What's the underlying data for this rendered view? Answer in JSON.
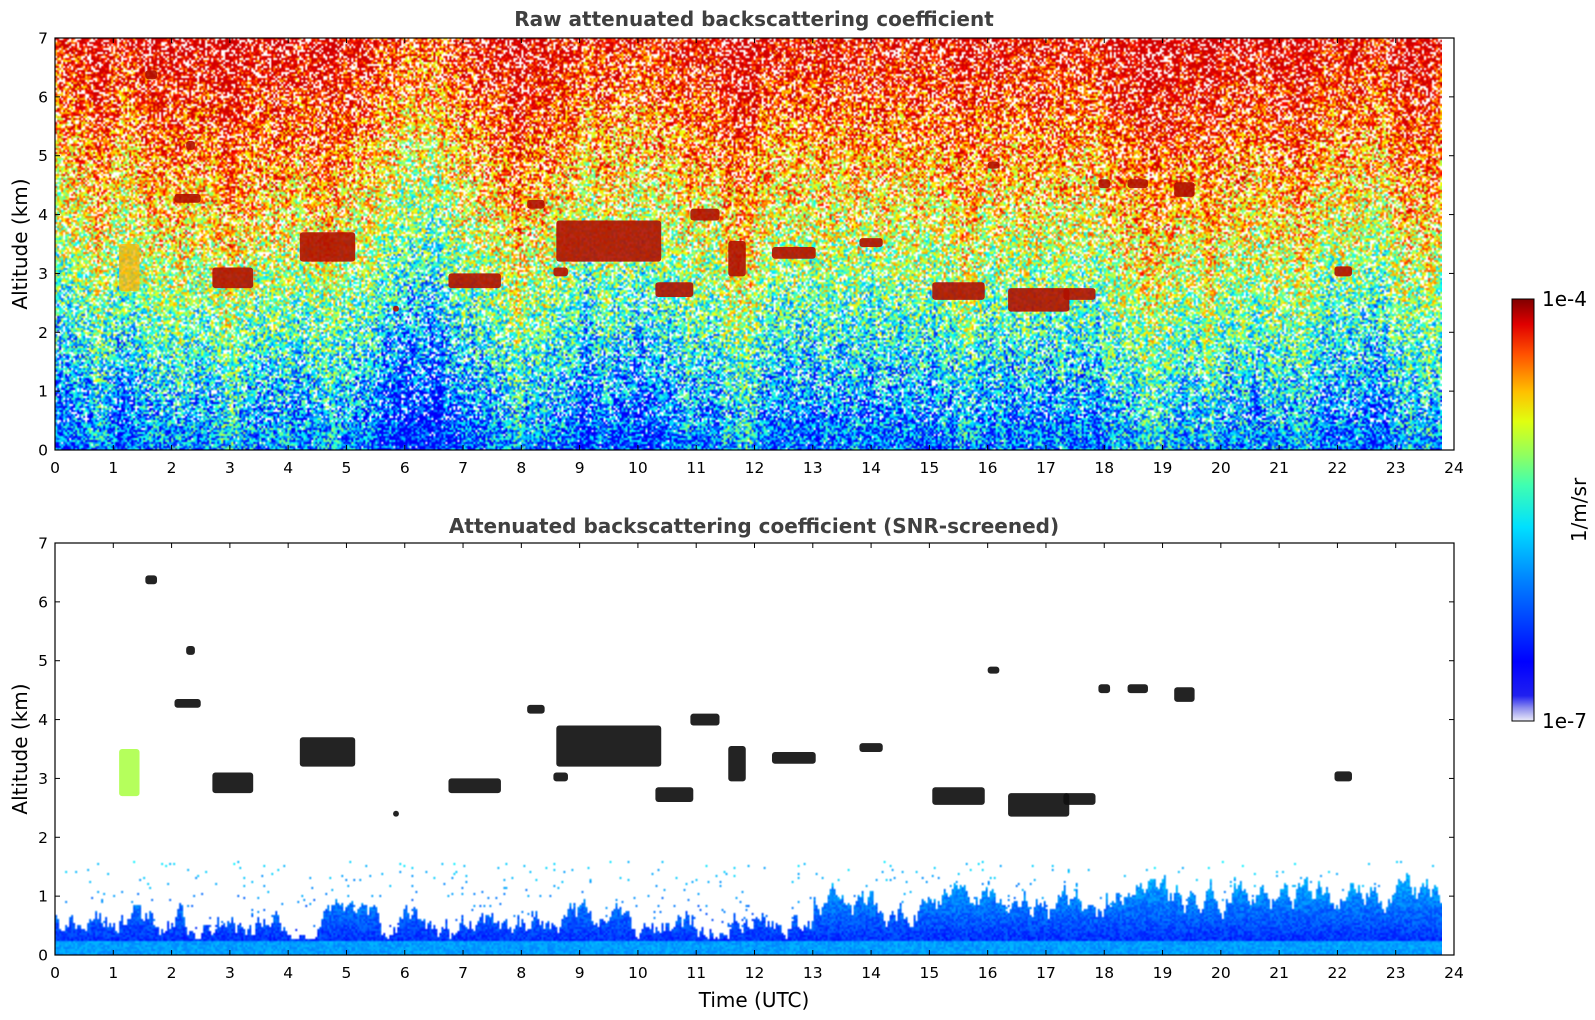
{
  "chart_data": [
    {
      "type": "heatmap",
      "title": "Raw attenuated backscattering coefficient",
      "xlabel": "",
      "ylabel": "Altitude (km)",
      "xlim": [
        0,
        24
      ],
      "ylim": [
        0,
        7
      ],
      "x_ticks": [
        "0",
        "1",
        "2",
        "3",
        "4",
        "5",
        "6",
        "7",
        "8",
        "9",
        "10",
        "11",
        "12",
        "13",
        "14",
        "15",
        "16",
        "17",
        "18",
        "19",
        "20",
        "21",
        "22",
        "23",
        "24"
      ],
      "y_ticks": [
        "0",
        "1",
        "2",
        "3",
        "4",
        "5",
        "6",
        "7"
      ],
      "data_end_time": 23.8,
      "value_scale": "log",
      "cloud_features": [
        {
          "t0": 1.55,
          "t1": 1.75,
          "z0": 6.3,
          "z1": 6.45
        },
        {
          "t0": 2.25,
          "t1": 2.4,
          "z0": 5.1,
          "z1": 5.25
        },
        {
          "t0": 2.05,
          "t1": 2.5,
          "z0": 4.2,
          "z1": 4.35
        },
        {
          "t0": 2.7,
          "t1": 3.4,
          "z0": 2.75,
          "z1": 3.1
        },
        {
          "t0": 4.2,
          "t1": 5.15,
          "z0": 3.2,
          "z1": 3.7
        },
        {
          "t0": 5.8,
          "t1": 5.9,
          "z0": 2.35,
          "z1": 2.45
        },
        {
          "t0": 6.75,
          "t1": 7.65,
          "z0": 2.75,
          "z1": 3.0
        },
        {
          "t0": 8.1,
          "t1": 8.4,
          "z0": 4.1,
          "z1": 4.25
        },
        {
          "t0": 8.6,
          "t1": 10.4,
          "z0": 3.2,
          "z1": 3.9
        },
        {
          "t0": 8.55,
          "t1": 8.8,
          "z0": 2.95,
          "z1": 3.1
        },
        {
          "t0": 10.3,
          "t1": 10.95,
          "z0": 2.6,
          "z1": 2.85
        },
        {
          "t0": 10.9,
          "t1": 11.4,
          "z0": 3.9,
          "z1": 4.1
        },
        {
          "t0": 11.55,
          "t1": 11.85,
          "z0": 2.95,
          "z1": 3.55
        },
        {
          "t0": 12.3,
          "t1": 13.05,
          "z0": 3.25,
          "z1": 3.45
        },
        {
          "t0": 13.8,
          "t1": 14.2,
          "z0": 3.45,
          "z1": 3.6
        },
        {
          "t0": 15.05,
          "t1": 15.95,
          "z0": 2.55,
          "z1": 2.85
        },
        {
          "t0": 16.0,
          "t1": 16.2,
          "z0": 4.78,
          "z1": 4.9
        },
        {
          "t0": 16.35,
          "t1": 17.4,
          "z0": 2.35,
          "z1": 2.75
        },
        {
          "t0": 17.3,
          "t1": 17.85,
          "z0": 2.55,
          "z1": 2.75
        },
        {
          "t0": 17.9,
          "t1": 18.1,
          "z0": 4.45,
          "z1": 4.6
        },
        {
          "t0": 18.4,
          "t1": 18.75,
          "z0": 4.45,
          "z1": 4.6
        },
        {
          "t0": 19.2,
          "t1": 19.55,
          "z0": 4.3,
          "z1": 4.55
        },
        {
          "t0": 21.95,
          "t1": 22.25,
          "z0": 2.95,
          "z1": 3.12
        },
        {
          "t0": 1.1,
          "t1": 1.45,
          "z0": 2.7,
          "z1": 3.5
        }
      ]
    },
    {
      "type": "heatmap",
      "title": "Attenuated backscattering coefficient (SNR-screened)",
      "xlabel": "Time (UTC)",
      "ylabel": "Altitude (km)",
      "xlim": [
        0,
        24
      ],
      "ylim": [
        0,
        7
      ],
      "x_ticks": [
        "0",
        "1",
        "2",
        "3",
        "4",
        "5",
        "6",
        "7",
        "8",
        "9",
        "10",
        "11",
        "12",
        "13",
        "14",
        "15",
        "16",
        "17",
        "18",
        "19",
        "20",
        "21",
        "22",
        "23",
        "24"
      ],
      "y_ticks": [
        "0",
        "1",
        "2",
        "3",
        "4",
        "5",
        "6",
        "7"
      ],
      "data_end_time": 23.8,
      "value_scale": "log"
    }
  ],
  "colorbar": {
    "label": "1/m/sr",
    "max_label": "1e-4",
    "min_label": "1e-7",
    "vmin": 1e-07,
    "vmax": 0.0001,
    "colormap": "jet"
  }
}
